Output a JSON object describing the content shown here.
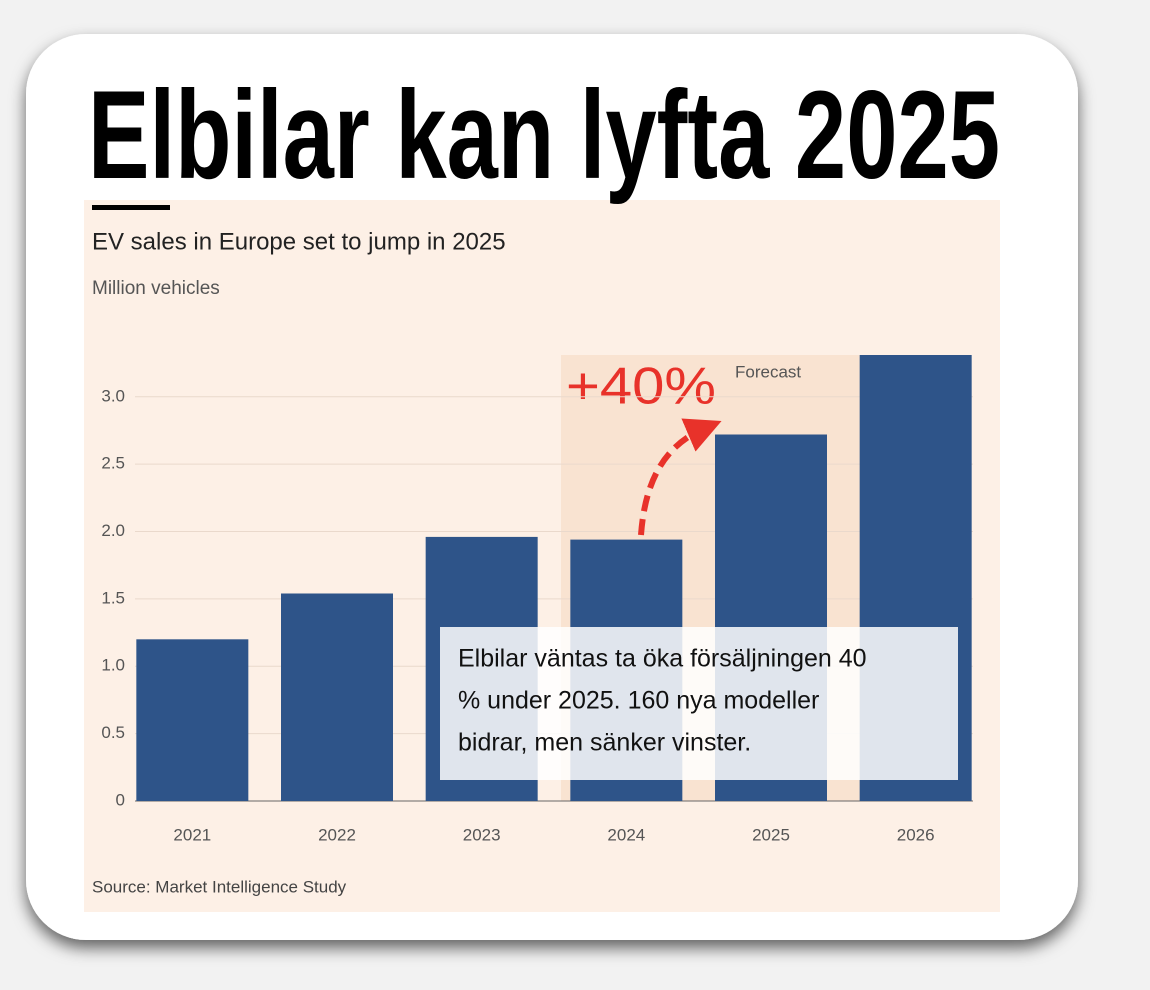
{
  "headline": "Elbilar kan lyfta 2025",
  "chart_data": {
    "type": "bar",
    "title": "EV sales in Europe set to jump in 2025",
    "y_label": "Million vehicles",
    "categories": [
      "2021",
      "2022",
      "2023",
      "2024",
      "2025",
      "2026"
    ],
    "values": [
      1.2,
      1.54,
      1.96,
      1.94,
      2.72,
      3.31
    ],
    "color": "#2e5489",
    "ylim": [
      0,
      3.31
    ],
    "yticks": [
      0,
      0.5,
      {
        "value": 1,
        "label": "1.0"
      },
      1.5,
      {
        "value": 2,
        "label": "2.0"
      },
      2.5,
      {
        "value": 3,
        "label": "3.0"
      }
    ],
    "grid": true,
    "forecast_label": "Forecast",
    "annotation": "+40%",
    "note": [
      "Elbilar väntas ta öka försäljningen 40",
      "% under 2025. 160 nya modeller",
      "bidrar, men sänker vinster."
    ],
    "source": "Source: Market Intelligence Study"
  }
}
